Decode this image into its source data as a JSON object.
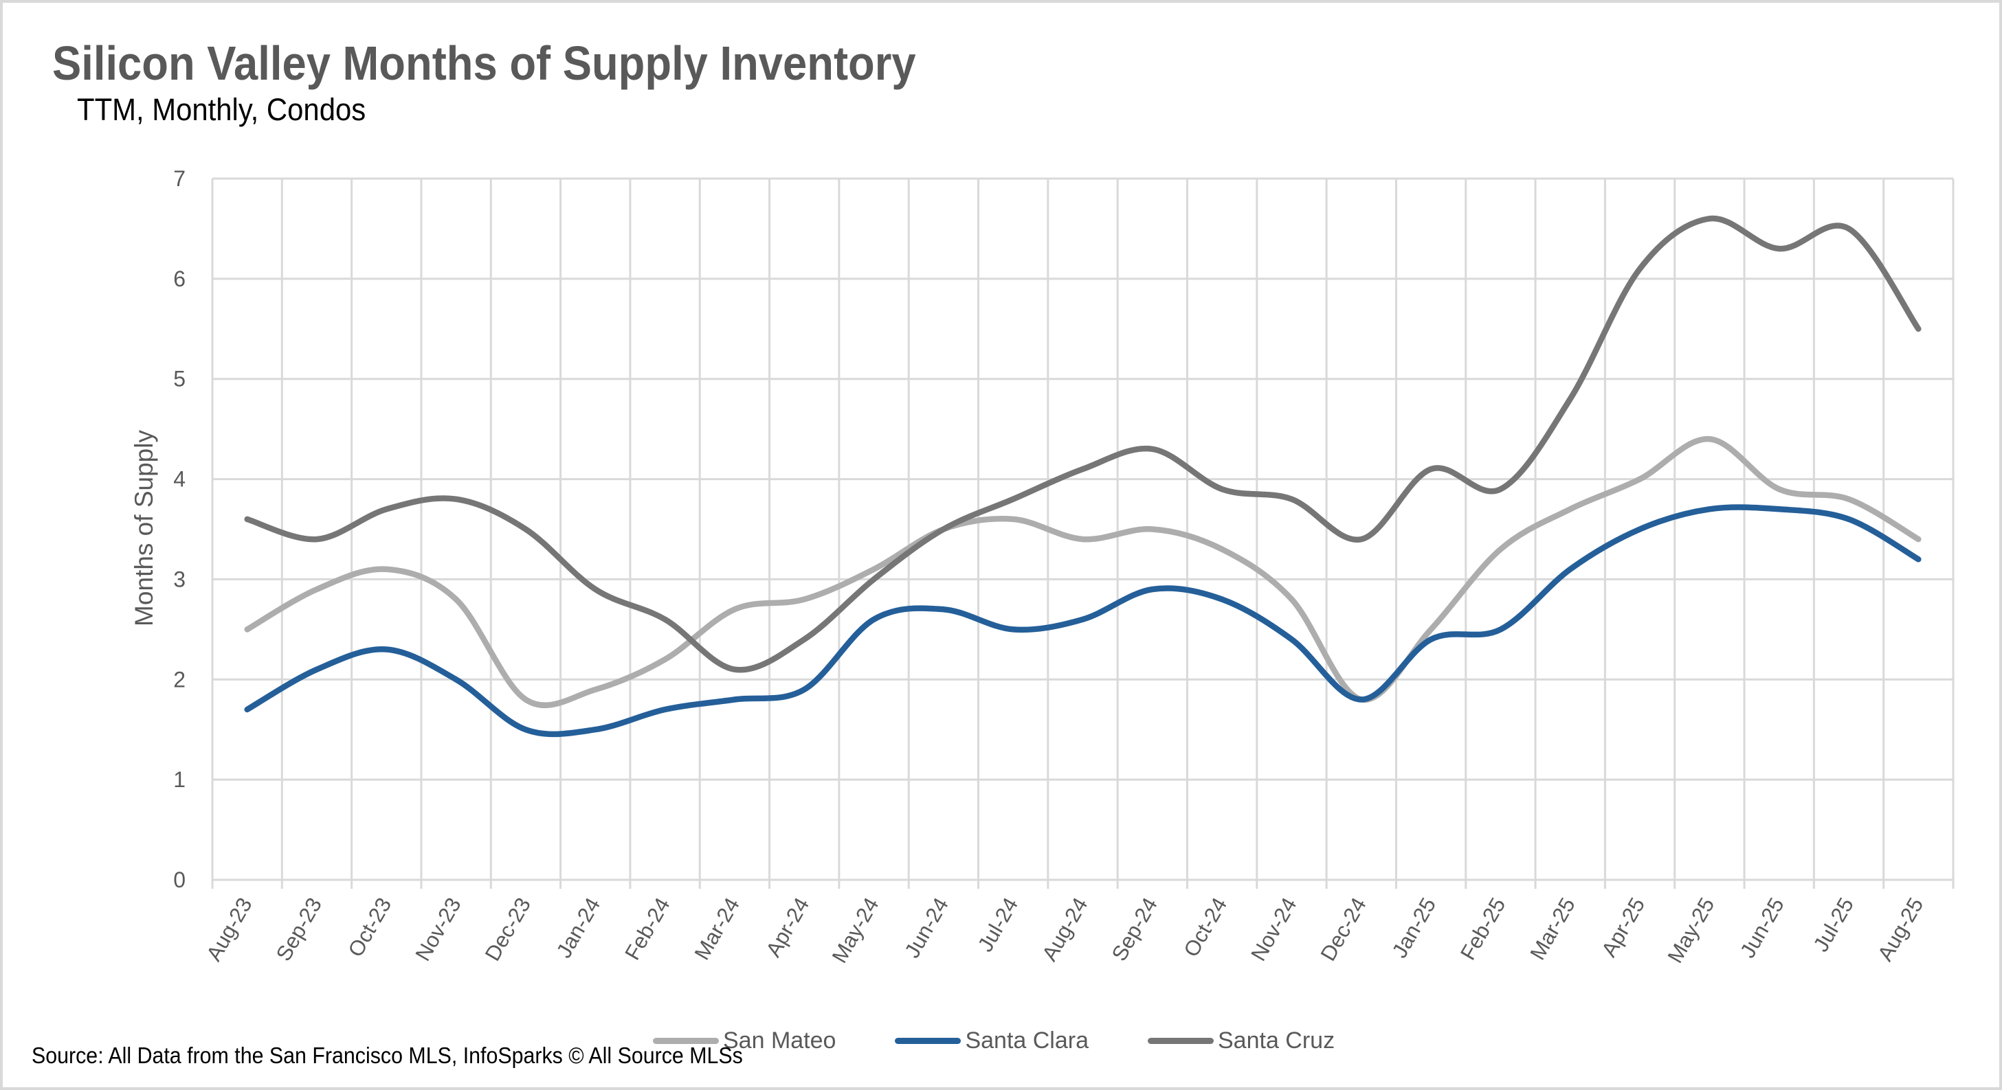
{
  "chart_data": {
    "type": "line",
    "title": "Silicon Valley Months of Supply Inventory",
    "subtitle": "TTM, Monthly, Condos",
    "xlabel": "",
    "ylabel": "Months of Supply",
    "ylim": [
      0,
      7
    ],
    "yticks": [
      "0",
      "1",
      "2",
      "3",
      "4",
      "5",
      "6",
      "7"
    ],
    "grid": true,
    "smoothed": true,
    "legend_position": "bottom",
    "categories": [
      "Aug-23",
      "Sep-23",
      "Oct-23",
      "Nov-23",
      "Dec-23",
      "Jan-24",
      "Feb-24",
      "Mar-24",
      "Apr-24",
      "May-24",
      "Jun-24",
      "Jul-24",
      "Aug-24",
      "Sep-24",
      "Oct-24",
      "Nov-24",
      "Dec-24",
      "Jan-25",
      "Feb-25",
      "Mar-25",
      "Apr-25",
      "May-25",
      "Jun-25",
      "Jul-25",
      "Aug-25"
    ],
    "series": [
      {
        "name": "San Mateo",
        "color": "#adadad",
        "values": [
          2.5,
          2.9,
          3.1,
          2.8,
          1.8,
          1.9,
          2.2,
          2.7,
          2.8,
          3.1,
          3.5,
          3.6,
          3.4,
          3.5,
          3.3,
          2.8,
          1.8,
          2.5,
          3.3,
          3.7,
          4.0,
          4.4,
          3.9,
          3.8,
          3.4
        ]
      },
      {
        "name": "Santa Clara",
        "color": "#245f99",
        "values": [
          1.7,
          2.1,
          2.3,
          2.0,
          1.5,
          1.5,
          1.7,
          1.8,
          1.9,
          2.6,
          2.7,
          2.5,
          2.6,
          2.9,
          2.8,
          2.4,
          1.8,
          2.4,
          2.5,
          3.1,
          3.5,
          3.7,
          3.7,
          3.6,
          3.2
        ]
      },
      {
        "name": "Santa Cruz",
        "color": "#767676",
        "values": [
          3.6,
          3.4,
          3.7,
          3.8,
          3.5,
          2.9,
          2.6,
          2.1,
          2.4,
          3.0,
          3.5,
          3.8,
          4.1,
          4.3,
          3.9,
          3.8,
          3.4,
          4.1,
          3.9,
          4.8,
          6.1,
          6.6,
          6.3,
          6.5,
          5.5
        ]
      }
    ]
  },
  "source_note": "Source: All Data from the San Francisco MLS, InfoSparks © All Source MLSs",
  "colors": {
    "grid": "#d9d9d9",
    "text": "#595959"
  }
}
